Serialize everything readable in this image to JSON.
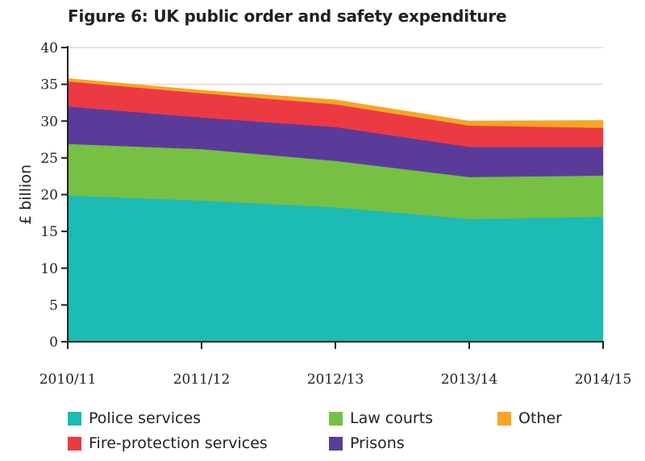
{
  "figure": {
    "title": "Figure 6: UK public order and safety expenditure"
  },
  "chart_data": {
    "type": "area",
    "stacked": true,
    "title": "Figure 6: UK public order and safety expenditure",
    "xlabel": "",
    "ylabel": "£ billion",
    "categories": [
      "2010/11",
      "2011/12",
      "2012/13",
      "2013/14",
      "2014/15"
    ],
    "ylim": [
      0,
      40
    ],
    "yticks": [
      0,
      5,
      10,
      15,
      20,
      25,
      30,
      35,
      40
    ],
    "grid": true,
    "legend_position": "bottom",
    "series": [
      {
        "name": "Police services",
        "color": "#1cbbb4",
        "values": [
          19.9,
          19.2,
          18.3,
          16.7,
          17.0
        ]
      },
      {
        "name": "Law courts",
        "color": "#76c043",
        "values": [
          7.0,
          7.0,
          6.3,
          5.7,
          5.6
        ]
      },
      {
        "name": "Prisons",
        "color": "#5b3b99",
        "values": [
          5.1,
          4.3,
          4.6,
          4.1,
          3.9
        ]
      },
      {
        "name": "Fire-protection services",
        "color": "#ec3a43",
        "values": [
          3.4,
          3.3,
          3.1,
          2.9,
          2.6
        ]
      },
      {
        "name": "Other",
        "color": "#f6a623",
        "values": [
          0.4,
          0.4,
          0.6,
          0.6,
          1.0
        ]
      }
    ]
  },
  "legend": {
    "items": [
      {
        "label": "Police services",
        "color": "#1cbbb4"
      },
      {
        "label": "Law courts",
        "color": "#76c043"
      },
      {
        "label": "Other",
        "color": "#f6a623"
      },
      {
        "label": "Fire-protection services",
        "color": "#ec3a43"
      },
      {
        "label": "Prisons",
        "color": "#5b3b99"
      }
    ]
  }
}
